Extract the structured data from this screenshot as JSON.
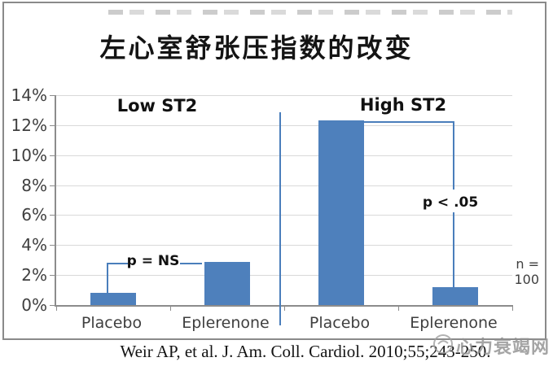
{
  "slide": {
    "title": "左心室舒张压指数的改变",
    "citation": "Weir AP, et al. J. Am. Coll. Cardiol. 2010;55;243-250.",
    "watermark": "心力衰竭网"
  },
  "chart_data": {
    "type": "bar",
    "title": "左心室舒张压指数的改变",
    "groups": [
      "Low ST2",
      "High ST2"
    ],
    "categories": [
      "Placebo",
      "Eplerenone",
      "Placebo",
      "Eplerenone"
    ],
    "values": [
      0.8,
      2.9,
      12.3,
      1.2
    ],
    "ylim": [
      0,
      14
    ],
    "ytick_step": 2,
    "ytick_labels": [
      "14%",
      "12%",
      "10%",
      "8%",
      "6%",
      "4%",
      "2%",
      "0%"
    ],
    "bar_color": "#4e80bc",
    "grid": true,
    "legend": "none",
    "annotations": [
      {
        "label": "p = NS",
        "group": "Low ST2"
      },
      {
        "label": "p < .05",
        "group": "High ST2"
      },
      {
        "label": "n = 100",
        "group": ""
      }
    ]
  }
}
